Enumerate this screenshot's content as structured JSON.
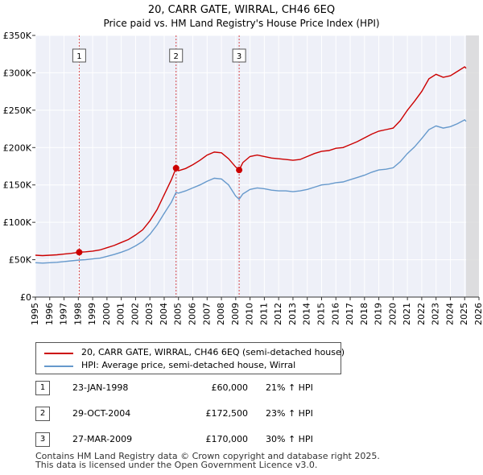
{
  "chart_data": {
    "type": "line",
    "title": "20, CARR GATE, WIRRAL, CH46 6EQ",
    "subtitle": "Price paid vs. HM Land Registry's House Price Index (HPI)",
    "xlim": [
      1995,
      2026
    ],
    "ylim": [
      0,
      350000
    ],
    "x_ticks": [
      1995,
      1996,
      1997,
      1998,
      1999,
      2000,
      2001,
      2002,
      2003,
      2004,
      2005,
      2006,
      2007,
      2008,
      2009,
      2010,
      2011,
      2012,
      2013,
      2014,
      2015,
      2016,
      2017,
      2018,
      2019,
      2020,
      2021,
      2022,
      2023,
      2024,
      2025,
      2026
    ],
    "y_ticks": [
      {
        "value": 0,
        "label": "£0"
      },
      {
        "value": 50000,
        "label": "£50K"
      },
      {
        "value": 100000,
        "label": "£100K"
      },
      {
        "value": 150000,
        "label": "£150K"
      },
      {
        "value": 200000,
        "label": "£200K"
      },
      {
        "value": 250000,
        "label": "£250K"
      },
      {
        "value": 300000,
        "label": "£300K"
      },
      {
        "value": 350000,
        "label": "£350K"
      }
    ],
    "future_shade_from": 2025.1,
    "series": [
      {
        "name": "20, CARR GATE, WIRRAL, CH46 6EQ (semi-detached house)",
        "color": "#cc0000",
        "points": [
          [
            1995.0,
            56000
          ],
          [
            1995.5,
            55500
          ],
          [
            1996.0,
            56000
          ],
          [
            1996.5,
            56500
          ],
          [
            1997.0,
            57500
          ],
          [
            1997.5,
            58500
          ],
          [
            1998.06,
            60000
          ],
          [
            1998.5,
            60500
          ],
          [
            1999.0,
            61500
          ],
          [
            1999.5,
            63000
          ],
          [
            2000.0,
            66000
          ],
          [
            2000.5,
            69000
          ],
          [
            2001.0,
            73000
          ],
          [
            2001.5,
            77000
          ],
          [
            2002.0,
            83000
          ],
          [
            2002.5,
            90000
          ],
          [
            2003.0,
            102000
          ],
          [
            2003.5,
            117000
          ],
          [
            2004.0,
            137000
          ],
          [
            2004.5,
            157000
          ],
          [
            2004.83,
            172500
          ],
          [
            2005.0,
            169000
          ],
          [
            2005.5,
            172000
          ],
          [
            2006.0,
            177000
          ],
          [
            2006.5,
            183000
          ],
          [
            2007.0,
            190000
          ],
          [
            2007.5,
            194000
          ],
          [
            2008.0,
            193000
          ],
          [
            2008.5,
            185000
          ],
          [
            2009.0,
            174000
          ],
          [
            2009.24,
            170000
          ],
          [
            2009.5,
            180000
          ],
          [
            2010.0,
            188000
          ],
          [
            2010.5,
            190000
          ],
          [
            2011.0,
            188000
          ],
          [
            2011.5,
            186000
          ],
          [
            2012.0,
            185000
          ],
          [
            2012.5,
            184000
          ],
          [
            2013.0,
            183000
          ],
          [
            2013.5,
            184000
          ],
          [
            2014.0,
            188000
          ],
          [
            2014.5,
            192000
          ],
          [
            2015.0,
            195000
          ],
          [
            2015.5,
            196000
          ],
          [
            2016.0,
            199000
          ],
          [
            2016.5,
            200000
          ],
          [
            2017.0,
            204000
          ],
          [
            2017.5,
            208000
          ],
          [
            2018.0,
            213000
          ],
          [
            2018.5,
            218000
          ],
          [
            2019.0,
            222000
          ],
          [
            2019.5,
            224000
          ],
          [
            2020.0,
            226000
          ],
          [
            2020.5,
            236000
          ],
          [
            2021.0,
            250000
          ],
          [
            2021.5,
            262000
          ],
          [
            2022.0,
            275000
          ],
          [
            2022.5,
            292000
          ],
          [
            2023.0,
            298000
          ],
          [
            2023.5,
            294000
          ],
          [
            2024.0,
            296000
          ],
          [
            2024.5,
            302000
          ],
          [
            2025.0,
            308000
          ],
          [
            2025.1,
            306000
          ]
        ]
      },
      {
        "name": "HPI: Average price, semi-detached house, Wirral",
        "color": "#6699cc",
        "points": [
          [
            1995.0,
            46000
          ],
          [
            1995.5,
            45500
          ],
          [
            1996.0,
            46000
          ],
          [
            1996.5,
            46500
          ],
          [
            1997.0,
            47500
          ],
          [
            1997.5,
            48500
          ],
          [
            1998.06,
            49500
          ],
          [
            1998.5,
            50000
          ],
          [
            1999.0,
            51000
          ],
          [
            1999.5,
            52000
          ],
          [
            2000.0,
            54500
          ],
          [
            2000.5,
            57000
          ],
          [
            2001.0,
            60000
          ],
          [
            2001.5,
            63500
          ],
          [
            2002.0,
            68500
          ],
          [
            2002.5,
            74500
          ],
          [
            2003.0,
            84000
          ],
          [
            2003.5,
            96500
          ],
          [
            2004.0,
            112000
          ],
          [
            2004.5,
            127000
          ],
          [
            2004.83,
            140000
          ],
          [
            2005.0,
            139000
          ],
          [
            2005.5,
            142000
          ],
          [
            2006.0,
            146000
          ],
          [
            2006.5,
            150000
          ],
          [
            2007.0,
            155000
          ],
          [
            2007.5,
            159000
          ],
          [
            2008.0,
            158000
          ],
          [
            2008.5,
            150000
          ],
          [
            2009.0,
            135000
          ],
          [
            2009.24,
            131000
          ],
          [
            2009.5,
            138000
          ],
          [
            2010.0,
            144000
          ],
          [
            2010.5,
            146000
          ],
          [
            2011.0,
            145000
          ],
          [
            2011.5,
            143000
          ],
          [
            2012.0,
            142000
          ],
          [
            2012.5,
            142000
          ],
          [
            2013.0,
            141000
          ],
          [
            2013.5,
            142000
          ],
          [
            2014.0,
            144000
          ],
          [
            2014.5,
            147000
          ],
          [
            2015.0,
            150000
          ],
          [
            2015.5,
            151000
          ],
          [
            2016.0,
            153000
          ],
          [
            2016.5,
            154000
          ],
          [
            2017.0,
            157000
          ],
          [
            2017.5,
            160000
          ],
          [
            2018.0,
            163000
          ],
          [
            2018.5,
            167000
          ],
          [
            2019.0,
            170000
          ],
          [
            2019.5,
            171000
          ],
          [
            2020.0,
            173000
          ],
          [
            2020.5,
            181000
          ],
          [
            2021.0,
            192000
          ],
          [
            2021.5,
            201000
          ],
          [
            2022.0,
            212000
          ],
          [
            2022.5,
            224000
          ],
          [
            2023.0,
            229000
          ],
          [
            2023.5,
            226000
          ],
          [
            2024.0,
            228000
          ],
          [
            2024.5,
            232000
          ],
          [
            2025.0,
            237000
          ],
          [
            2025.1,
            235000
          ]
        ]
      }
    ],
    "sales": [
      {
        "num": "1",
        "x": 1998.06,
        "price": 60000,
        "date": "23-JAN-1998",
        "price_label": "£60,000",
        "hpi": "21% ↑ HPI"
      },
      {
        "num": "2",
        "x": 2004.83,
        "price": 172500,
        "date": "29-OCT-2004",
        "price_label": "£172,500",
        "hpi": "23% ↑ HPI"
      },
      {
        "num": "3",
        "x": 2009.24,
        "price": 170000,
        "date": "27-MAR-2009",
        "price_label": "£170,000",
        "hpi": "30% ↑ HPI"
      }
    ],
    "legend": [
      {
        "label": "20, CARR GATE, WIRRAL, CH46 6EQ (semi-detached house)",
        "color": "#cc0000"
      },
      {
        "label": "HPI: Average price, semi-detached house, Wirral",
        "color": "#6699cc"
      }
    ]
  },
  "footer": {
    "line1": "Contains HM Land Registry data © Crown copyright and database right 2025.",
    "line2": "This data is licensed under the Open Government Licence v3.0."
  }
}
